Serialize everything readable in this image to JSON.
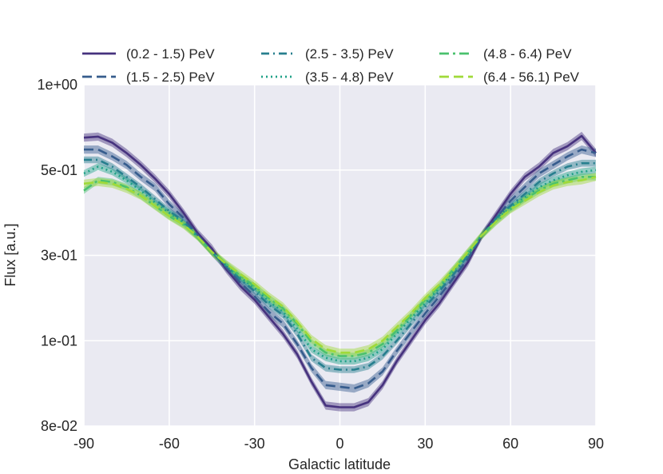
{
  "chart_data": {
    "type": "line",
    "title": "",
    "xlabel": "Galactic latitude",
    "ylabel": "Flux [a.u.]",
    "xlim": [
      -90,
      90
    ],
    "ylim_labels": [
      "8e-02",
      "1e-01",
      "3e-01",
      "5e-01",
      "1e+00"
    ],
    "xticks": [
      -90,
      -60,
      -30,
      0,
      30,
      60,
      90
    ],
    "xtick_labels": [
      "-90",
      "-60",
      "-30",
      "0",
      "30",
      "60",
      "90"
    ],
    "yticks": [
      {
        "label": "1e+00",
        "frac": 1.0
      },
      {
        "label": "5e-01",
        "frac": 0.75
      },
      {
        "label": "3e-01",
        "frac": 0.5
      },
      {
        "label": "1e-01",
        "frac": 0.25
      },
      {
        "label": "8e-02",
        "frac": 0.0
      }
    ],
    "grid": true,
    "legend_position": "top",
    "series": [
      {
        "name": "(0.2 - 1.5) PeV",
        "color": "#46327e",
        "dash": "",
        "band": 0.012,
        "x": [
          -90,
          -85,
          -80,
          -75,
          -70,
          -65,
          -60,
          -55,
          -50,
          -45,
          -40,
          -35,
          -30,
          -25,
          -20,
          -15,
          -10,
          -5,
          0,
          5,
          10,
          15,
          20,
          25,
          30,
          35,
          40,
          45,
          50,
          55,
          60,
          65,
          70,
          75,
          80,
          85,
          90
        ],
        "y": [
          0.845,
          0.848,
          0.83,
          0.8,
          0.765,
          0.725,
          0.68,
          0.625,
          0.565,
          0.52,
          0.46,
          0.41,
          0.37,
          0.32,
          0.27,
          0.21,
          0.13,
          0.06,
          0.055,
          0.055,
          0.07,
          0.12,
          0.19,
          0.25,
          0.31,
          0.36,
          0.42,
          0.48,
          0.56,
          0.62,
          0.68,
          0.73,
          0.76,
          0.8,
          0.82,
          0.85,
          0.8
        ]
      },
      {
        "name": "(1.5 - 2.5) PeV",
        "color": "#365c8d",
        "dash": "12,6",
        "band": 0.012,
        "x": [
          -90,
          -85,
          -80,
          -75,
          -70,
          -65,
          -60,
          -55,
          -50,
          -45,
          -40,
          -35,
          -30,
          -25,
          -20,
          -15,
          -10,
          -5,
          0,
          5,
          10,
          15,
          20,
          25,
          30,
          35,
          40,
          45,
          50,
          55,
          60,
          65,
          70,
          75,
          80,
          85,
          90
        ],
        "y": [
          0.81,
          0.81,
          0.79,
          0.765,
          0.73,
          0.7,
          0.65,
          0.61,
          0.56,
          0.51,
          0.465,
          0.42,
          0.38,
          0.335,
          0.3,
          0.24,
          0.17,
          0.12,
          0.115,
          0.11,
          0.125,
          0.16,
          0.22,
          0.275,
          0.33,
          0.38,
          0.435,
          0.49,
          0.56,
          0.61,
          0.66,
          0.7,
          0.74,
          0.765,
          0.79,
          0.81,
          0.8
        ]
      },
      {
        "name": "(2.5 - 3.5) PeV",
        "color": "#277f8e",
        "dash": "10,5,2,5",
        "band": 0.01,
        "x": [
          -90,
          -85,
          -80,
          -75,
          -70,
          -65,
          -60,
          -55,
          -50,
          -45,
          -40,
          -35,
          -30,
          -25,
          -20,
          -15,
          -10,
          -5,
          0,
          5,
          10,
          15,
          20,
          25,
          30,
          35,
          40,
          45,
          50,
          55,
          60,
          65,
          70,
          75,
          80,
          85,
          90
        ],
        "y": [
          0.78,
          0.78,
          0.76,
          0.73,
          0.7,
          0.665,
          0.63,
          0.6,
          0.555,
          0.51,
          0.47,
          0.43,
          0.395,
          0.355,
          0.325,
          0.27,
          0.2,
          0.17,
          0.165,
          0.165,
          0.175,
          0.205,
          0.25,
          0.3,
          0.35,
          0.395,
          0.445,
          0.5,
          0.56,
          0.61,
          0.645,
          0.68,
          0.715,
          0.74,
          0.76,
          0.77,
          0.77
        ]
      },
      {
        "name": "(3.5 - 4.8) PeV",
        "color": "#1fa187",
        "dash": "2,4",
        "band": 0.01,
        "x": [
          -90,
          -85,
          -80,
          -75,
          -70,
          -65,
          -60,
          -55,
          -50,
          -45,
          -40,
          -35,
          -30,
          -25,
          -20,
          -15,
          -10,
          -5,
          0,
          5,
          10,
          15,
          20,
          25,
          30,
          35,
          40,
          45,
          50,
          55,
          60,
          65,
          70,
          75,
          80,
          85,
          90
        ],
        "y": [
          0.74,
          0.76,
          0.745,
          0.72,
          0.69,
          0.655,
          0.625,
          0.595,
          0.555,
          0.51,
          0.47,
          0.435,
          0.405,
          0.365,
          0.335,
          0.285,
          0.225,
          0.2,
          0.19,
          0.19,
          0.2,
          0.225,
          0.27,
          0.315,
          0.36,
          0.405,
          0.455,
          0.505,
          0.56,
          0.605,
          0.64,
          0.67,
          0.7,
          0.72,
          0.735,
          0.745,
          0.75
        ]
      },
      {
        "name": "(4.8 - 6.4) PeV",
        "color": "#4ac16d",
        "dash": "12,5,3,5",
        "band": 0.01,
        "x": [
          -90,
          -85,
          -80,
          -75,
          -70,
          -65,
          -60,
          -55,
          -50,
          -45,
          -40,
          -35,
          -30,
          -25,
          -20,
          -15,
          -10,
          -5,
          0,
          5,
          10,
          15,
          20,
          25,
          30,
          35,
          40,
          45,
          50,
          55,
          60,
          65,
          70,
          75,
          80,
          85,
          90
        ],
        "y": [
          0.69,
          0.72,
          0.715,
          0.7,
          0.675,
          0.645,
          0.615,
          0.59,
          0.555,
          0.51,
          0.475,
          0.44,
          0.41,
          0.375,
          0.345,
          0.3,
          0.245,
          0.215,
          0.205,
          0.205,
          0.215,
          0.24,
          0.28,
          0.325,
          0.37,
          0.41,
          0.46,
          0.51,
          0.56,
          0.6,
          0.635,
          0.665,
          0.69,
          0.71,
          0.72,
          0.73,
          0.73
        ]
      },
      {
        "name": "(6.4 - 56.1) PeV",
        "color": "#a0da39",
        "dash": "12,6",
        "band": 0.012,
        "x": [
          -90,
          -85,
          -80,
          -75,
          -70,
          -65,
          -60,
          -55,
          -50,
          -45,
          -40,
          -35,
          -30,
          -25,
          -20,
          -15,
          -10,
          -5,
          0,
          5,
          10,
          15,
          20,
          25,
          30,
          35,
          40,
          45,
          50,
          55,
          60,
          65,
          70,
          75,
          80,
          85,
          90
        ],
        "y": [
          0.71,
          0.715,
          0.71,
          0.695,
          0.675,
          0.645,
          0.615,
          0.59,
          0.555,
          0.51,
          0.475,
          0.445,
          0.415,
          0.38,
          0.35,
          0.305,
          0.255,
          0.225,
          0.215,
          0.215,
          0.225,
          0.25,
          0.29,
          0.33,
          0.375,
          0.415,
          0.46,
          0.51,
          0.56,
          0.6,
          0.635,
          0.66,
          0.685,
          0.705,
          0.715,
          0.72,
          0.73
        ]
      }
    ]
  }
}
